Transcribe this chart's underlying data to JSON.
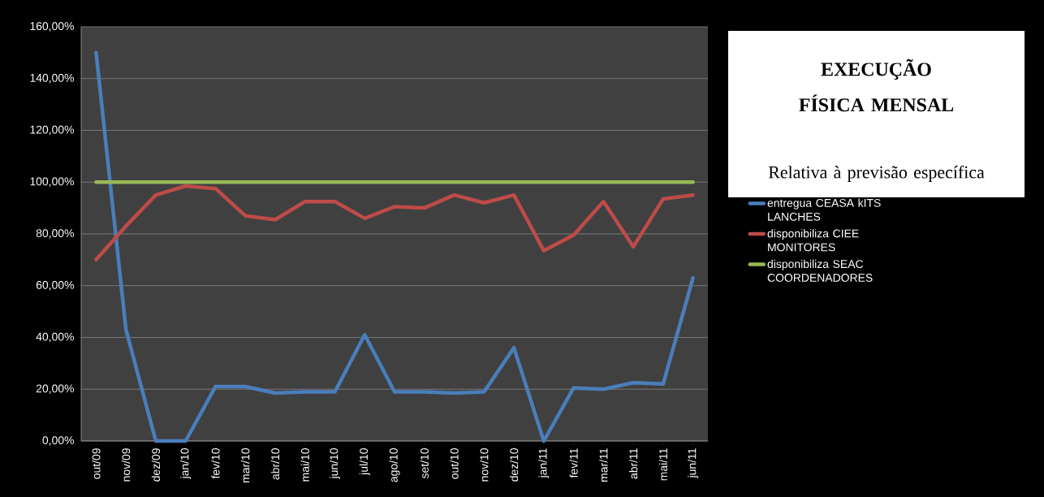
{
  "chart_data": {
    "type": "line",
    "title": "EXECUÇÃO FÍSICA MENSAL",
    "subtitle": "Relativa à previsão específica",
    "categories": [
      "out/09",
      "nov/09",
      "dez/09",
      "jan/10",
      "fev/10",
      "mar/10",
      "abr/10",
      "mai/10",
      "jun/10",
      "jul/10",
      "ago/10",
      "set/10",
      "out/10",
      "nov/10",
      "dez/10",
      "jan/11",
      "fev/11",
      "mar/11",
      "abr/11",
      "mai/11",
      "jun/11"
    ],
    "series": [
      {
        "name": "entregua CEASA kITS LANCHES",
        "color": "#4a7ebb",
        "values": [
          150,
          43,
          0,
          0,
          21,
          21,
          18.5,
          19,
          19,
          41,
          19,
          19,
          18.5,
          19,
          36,
          0,
          20.5,
          20,
          22.5,
          22,
          63
        ]
      },
      {
        "name": "disponibiliza CIEE MONITORES",
        "color": "#be4b48",
        "values": [
          70,
          83,
          95,
          98.5,
          97.5,
          87,
          85.5,
          92.5,
          92.5,
          86,
          90.5,
          90,
          95,
          92,
          95,
          73.5,
          79.5,
          92.5,
          75,
          93.5,
          95
        ]
      },
      {
        "name": "disponibiliza SEAC COORDENADORES",
        "color": "#98b954",
        "values": [
          100,
          100,
          100,
          100,
          100,
          100,
          100,
          100,
          100,
          100,
          100,
          100,
          100,
          100,
          100,
          100,
          100,
          100,
          100,
          100,
          100
        ]
      }
    ],
    "ylim": [
      0,
      160
    ],
    "yticks": [
      {
        "value": 0,
        "label": "0,00%"
      },
      {
        "value": 20,
        "label": "20,00%"
      },
      {
        "value": 40,
        "label": "40,00%"
      },
      {
        "value": 60,
        "label": "60,00%"
      },
      {
        "value": 80,
        "label": "80,00%"
      },
      {
        "value": 100,
        "label": "100,00%"
      },
      {
        "value": 120,
        "label": "120,00%"
      },
      {
        "value": 140,
        "label": "140,00%"
      },
      {
        "value": 160,
        "label": "160,00%"
      }
    ],
    "grid": "y",
    "legend": "right",
    "marker": "none",
    "line_style": "solid"
  }
}
